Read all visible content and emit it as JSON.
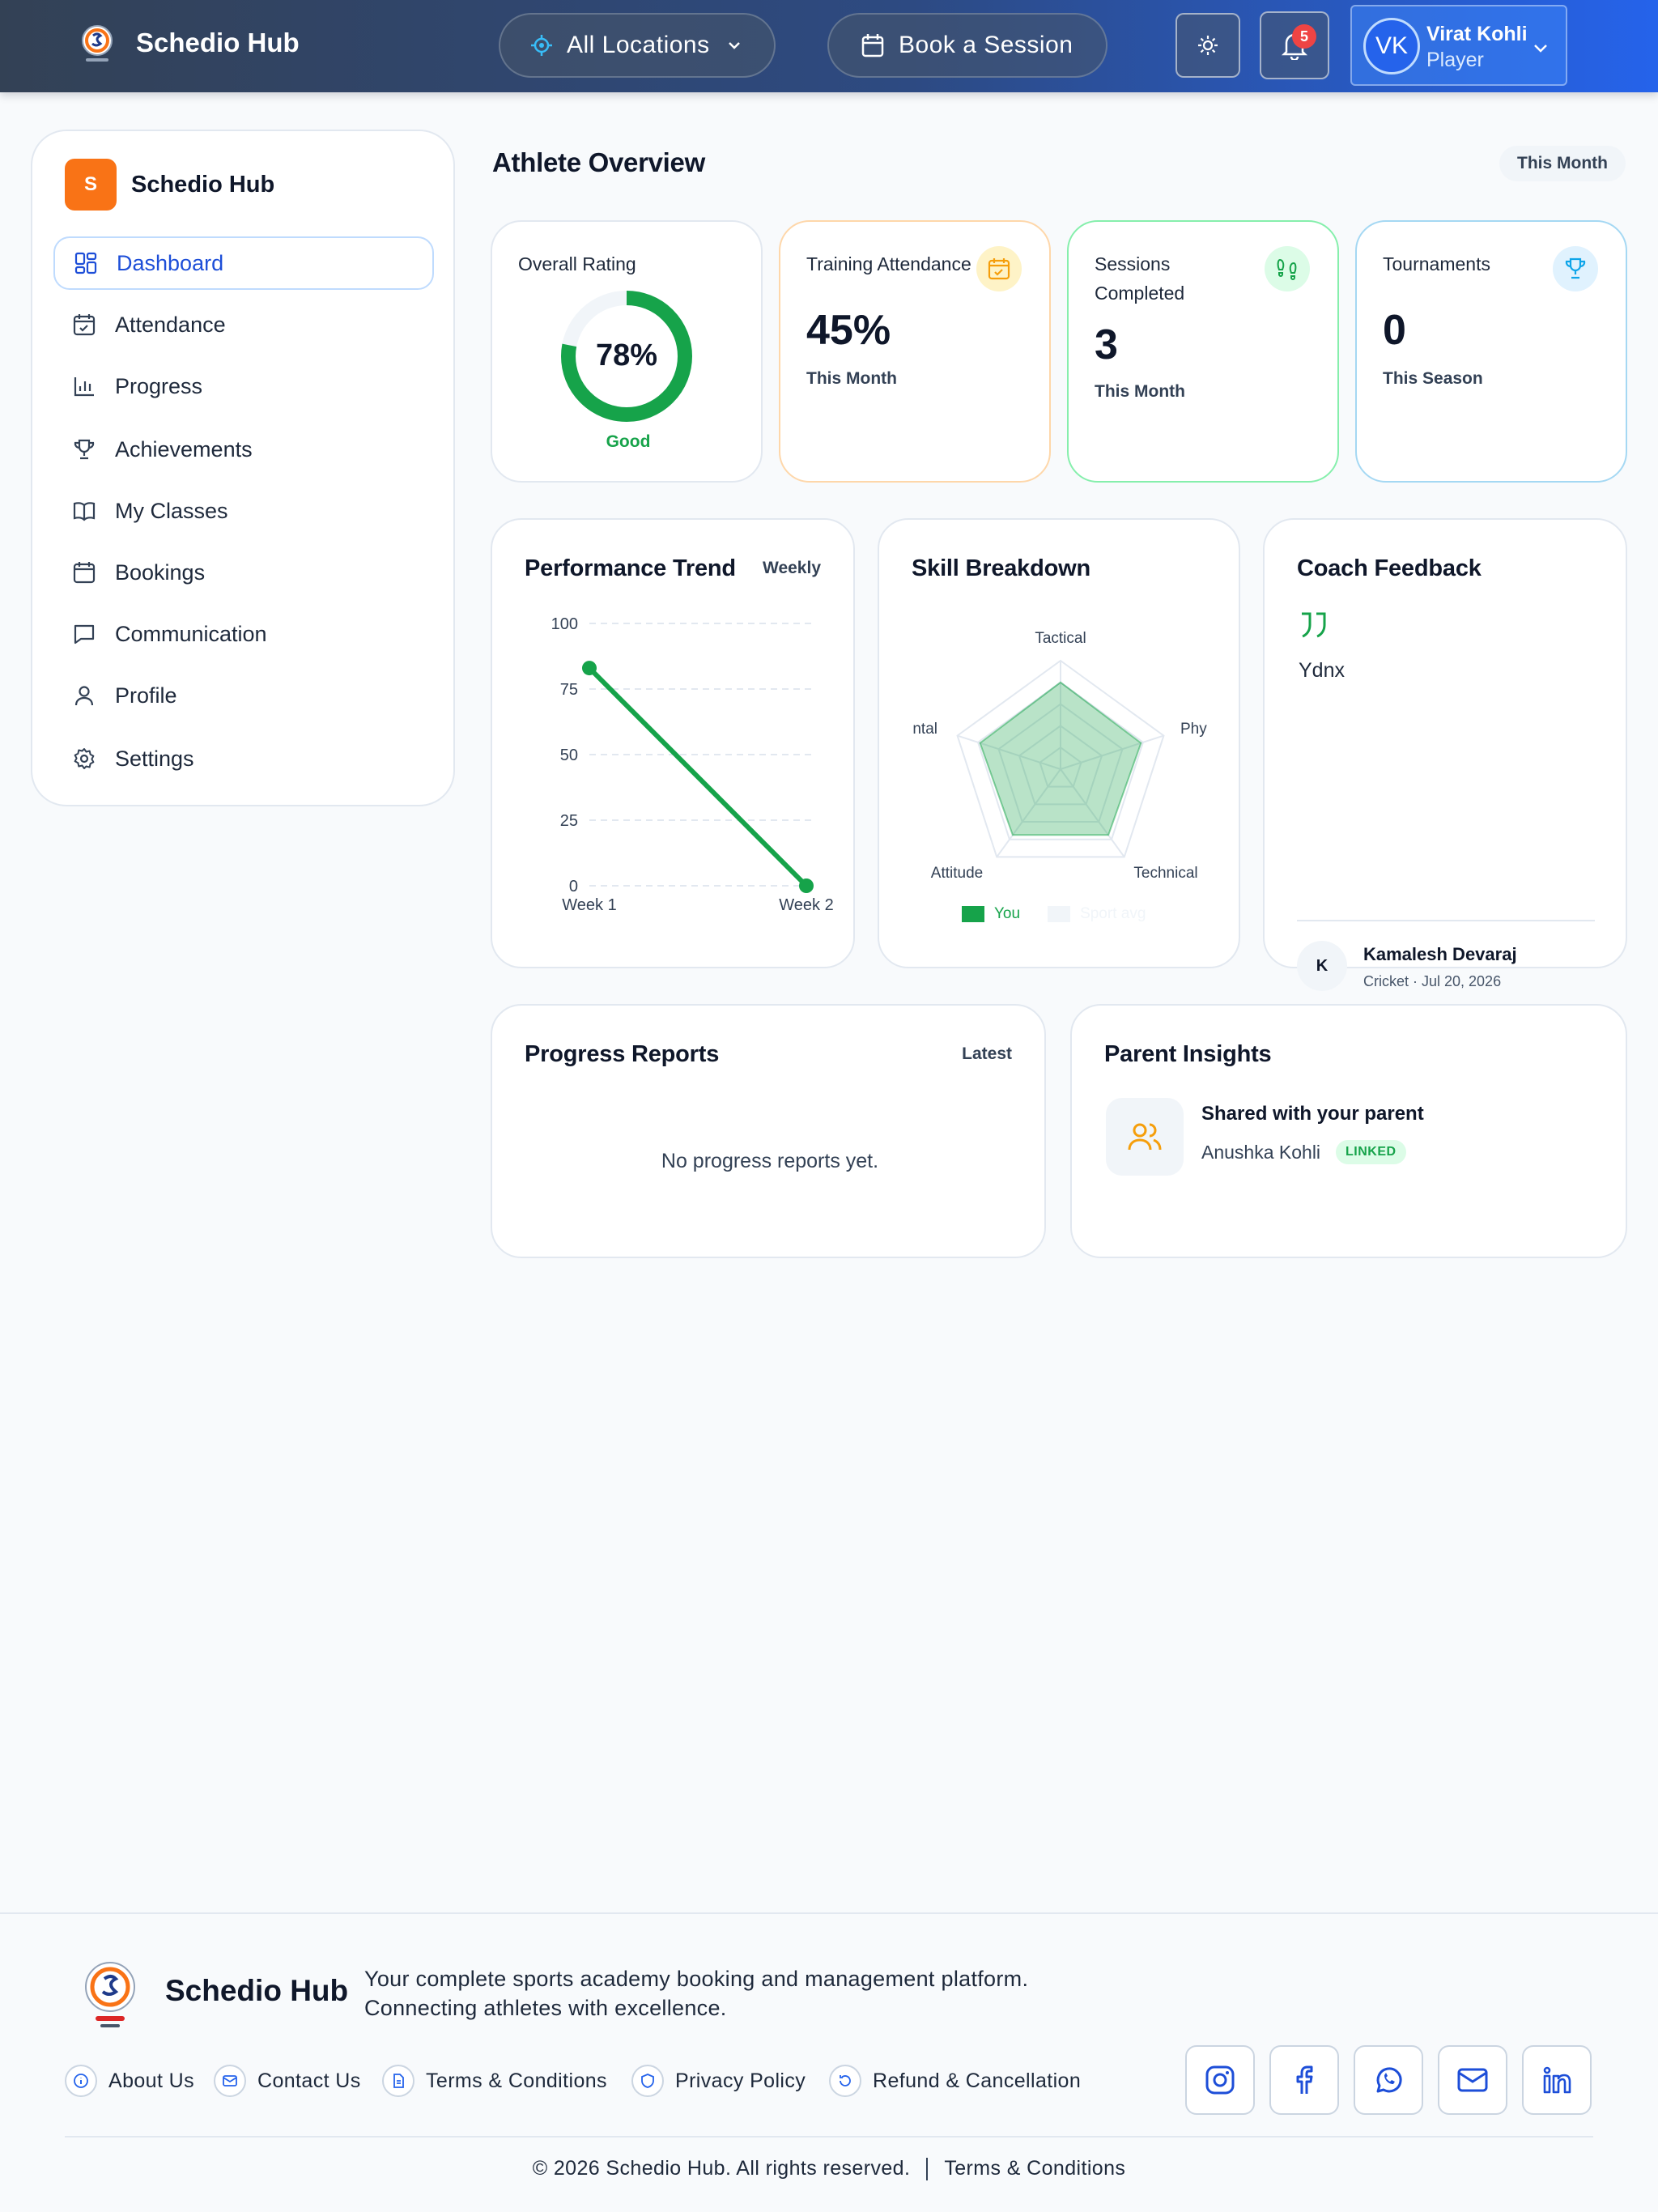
{
  "topbar": {
    "brand": "Schedio Hub",
    "location_label": "All Locations",
    "book_label": "Book a Session",
    "notification_count": "5",
    "user": {
      "initials": "VK",
      "name": "Virat Kohli",
      "role": "Player"
    }
  },
  "sidebar": {
    "logo_letter": "S",
    "brand": "Schedio Hub",
    "items": [
      {
        "label": "Dashboard",
        "icon": "dashboard-icon",
        "active": true
      },
      {
        "label": "Attendance",
        "icon": "calendar-check-icon"
      },
      {
        "label": "Progress",
        "icon": "bar-chart-icon"
      },
      {
        "label": "Achievements",
        "icon": "trophy-icon"
      },
      {
        "label": "My Classes",
        "icon": "book-icon"
      },
      {
        "label": "Bookings",
        "icon": "calendar-icon"
      },
      {
        "label": "Communication",
        "icon": "chat-icon"
      },
      {
        "label": "Profile",
        "icon": "user-icon"
      },
      {
        "label": "Settings",
        "icon": "gear-icon"
      }
    ]
  },
  "overview": {
    "title": "Athlete Overview",
    "period": "This Month",
    "rating": {
      "label": "Overall Rating",
      "value": "78%",
      "percent": 78,
      "status": "Good"
    },
    "attendance": {
      "label": "Training Attendance",
      "value": "45%",
      "sub": "This Month"
    },
    "sessions": {
      "label": "Sessions Completed",
      "value": "3",
      "sub": "This Month"
    },
    "tournaments": {
      "label": "Tournaments",
      "value": "0",
      "sub": "This Season"
    }
  },
  "performance": {
    "title": "Performance Trend",
    "tag": "Weekly"
  },
  "skills": {
    "title": "Skill Breakdown",
    "legend_you": "You",
    "legend_avg": "Sport avg"
  },
  "feedback": {
    "title": "Coach Feedback",
    "text": "Ydnx",
    "coach_initial": "K",
    "coach_name": "Kamalesh Devaraj",
    "meta": "Cricket · Jul 20, 2026"
  },
  "reports": {
    "title": "Progress Reports",
    "tag": "Latest",
    "empty": "No progress reports yet."
  },
  "parent": {
    "title": "Parent Insights",
    "shared": "Shared with your parent",
    "name": "Anushka Kohli",
    "badge": "LINKED"
  },
  "footer": {
    "brand": "Schedio Hub",
    "desc_line1": "Your complete sports academy booking and management platform.",
    "desc_line2": "Connecting athletes with excellence.",
    "links": [
      "About Us",
      "Contact Us",
      "Terms & Conditions",
      "Privacy Policy",
      "Refund & Cancellation"
    ],
    "copyright": "© 2026 Schedio Hub. All rights reserved.",
    "terms": "Terms & Conditions"
  },
  "chart_data": [
    {
      "type": "line",
      "title": "Performance Trend",
      "x": [
        "Week 1",
        "Week 2"
      ],
      "series": [
        {
          "values": [
            83,
            0
          ]
        }
      ],
      "yticks": [
        0,
        25,
        50,
        75,
        100
      ],
      "ylim": [
        0,
        100
      ],
      "grid": true,
      "color": "#16a34a"
    },
    {
      "type": "radar",
      "title": "Skill Breakdown",
      "axes": [
        "Tactical",
        "Phy",
        "Technical",
        "Attitude",
        "ntal"
      ],
      "series": [
        {
          "name": "You",
          "values": [
            80,
            78,
            75,
            75,
            78
          ]
        }
      ],
      "legend": [
        "You",
        "Sport avg"
      ],
      "color": "#16a34a"
    }
  ]
}
